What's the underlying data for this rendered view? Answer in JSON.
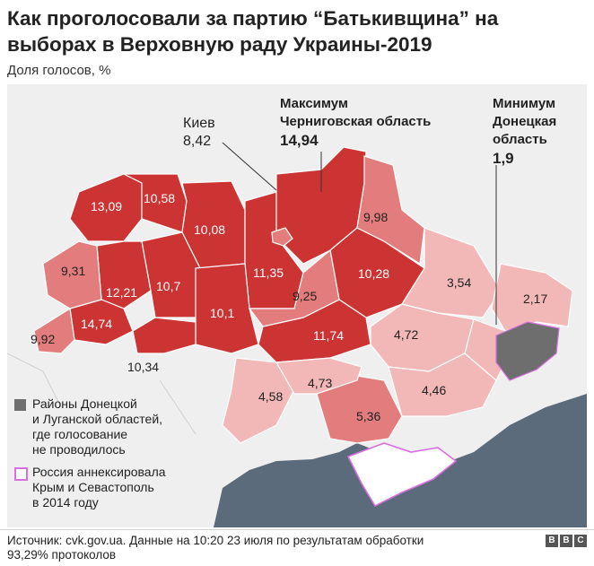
{
  "title": "Как проголосовали за партию “Батькивщина” на выборах в Верховную раду Украины-2019",
  "subtitle": "Доля голосов, %",
  "colors": {
    "high": "#cc3333",
    "mid": "#e37c7c",
    "low": "#f2b8b8",
    "no_vote": "#6e6e6e",
    "sea": "#5c6b7c",
    "crimea_border": "#d66fe0",
    "background": "#efefef"
  },
  "regions": [
    {
      "id": "lviv",
      "value": "13,09"
    },
    {
      "id": "volyn",
      "value": "10,58"
    },
    {
      "id": "rivne",
      "value": "10,08"
    },
    {
      "id": "zhytomyr",
      "value": "11,35"
    },
    {
      "id": "kyiv-city",
      "value": "8,42"
    },
    {
      "id": "chernihiv",
      "value": "14,94"
    },
    {
      "id": "sumy",
      "value": "9,98"
    },
    {
      "id": "zakarpattia",
      "value": "9,31"
    },
    {
      "id": "ternopil",
      "value": "12,21"
    },
    {
      "id": "khmelnytskyi",
      "value": "10,7"
    },
    {
      "id": "vinnytsia",
      "value": "10,1"
    },
    {
      "id": "kyiv-oblast",
      "value": "9,25"
    },
    {
      "id": "poltava",
      "value": "10,28"
    },
    {
      "id": "kharkiv",
      "value": "3,54"
    },
    {
      "id": "luhansk",
      "value": "2,17"
    },
    {
      "id": "ivano-frankivsk",
      "value": "14,74"
    },
    {
      "id": "chernivtsi",
      "value": "9,92"
    },
    {
      "id": "chernivtsi-east",
      "value": "10,34"
    },
    {
      "id": "cherkasy-kirovohrad",
      "value": "11,74"
    },
    {
      "id": "dnipropetrovsk",
      "value": "4,72"
    },
    {
      "id": "odesa",
      "value": "4,58"
    },
    {
      "id": "mykolaiv",
      "value": "4,73"
    },
    {
      "id": "zaporizhzhia",
      "value": "4,46"
    },
    {
      "id": "kherson",
      "value": "5,36"
    }
  ],
  "annotations": {
    "kyiv": {
      "name": "Киев",
      "value": "8,42"
    },
    "max": {
      "heading": "Максимум",
      "region": "Черниговская область",
      "value": "14,94"
    },
    "min": {
      "heading": "Минимум",
      "region_line1": "Донецкая",
      "region_line2": "область",
      "value": "1,9"
    }
  },
  "legend": {
    "no_vote": [
      "Районы Донецкой",
      "и Луганской областей,",
      "где голосование",
      "не проводилось"
    ],
    "crimea": [
      "Россия аннексировала",
      "Крым и Севастополь",
      "в 2014 году"
    ]
  },
  "footer": {
    "source_line1": "Источник: cvk.gov.ua. Данные на 10:20 23 июля по результатам обработки",
    "source_line2": "93,29% протоколов",
    "brand": [
      "B",
      "B",
      "C"
    ]
  }
}
